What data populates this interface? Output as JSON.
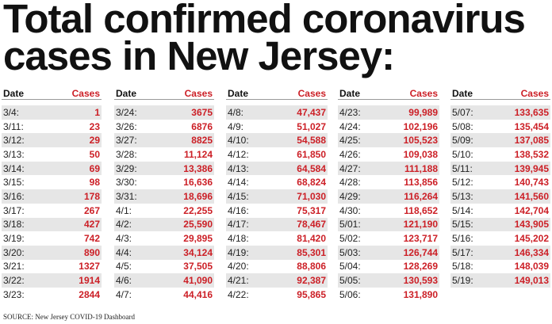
{
  "title": {
    "line1": "Total confirmed coronavirus",
    "line2": "cases in New Jersey:"
  },
  "headers": {
    "date": "Date",
    "cases": "Cases"
  },
  "columns": [
    [
      [
        "3/4:",
        "1"
      ],
      [
        "3/11:",
        "23"
      ],
      [
        "3/12:",
        "29"
      ],
      [
        "3/13:",
        "50"
      ],
      [
        "3/14:",
        "69"
      ],
      [
        "3/15:",
        "98"
      ],
      [
        "3/16:",
        "178"
      ],
      [
        "3/17:",
        "267"
      ],
      [
        "3/18:",
        "427"
      ],
      [
        "3/19:",
        "742"
      ],
      [
        "3/20:",
        "890"
      ],
      [
        "3/21:",
        "1327"
      ],
      [
        "3/22:",
        "1914"
      ],
      [
        "3/23:",
        "2844"
      ]
    ],
    [
      [
        "3/24:",
        "3675"
      ],
      [
        "3/26:",
        "6876"
      ],
      [
        "3/27:",
        "8825"
      ],
      [
        "3/28:",
        "11,124"
      ],
      [
        "3/29:",
        "13,386"
      ],
      [
        "3/30:",
        "16,636"
      ],
      [
        "3/31:",
        "18,696"
      ],
      [
        "4/1:",
        "22,255"
      ],
      [
        "4/2:",
        "25,590"
      ],
      [
        "4/3:",
        "29,895"
      ],
      [
        "4/4:",
        "34,124"
      ],
      [
        "4/5:",
        "37,505"
      ],
      [
        "4/6:",
        "41,090"
      ],
      [
        "4/7:",
        "44,416"
      ]
    ],
    [
      [
        "4/8:",
        "47,437"
      ],
      [
        "4/9:",
        "51,027"
      ],
      [
        "4/10:",
        "54,588"
      ],
      [
        "4/12:",
        "61,850"
      ],
      [
        "4/13:",
        "64,584"
      ],
      [
        "4/14:",
        "68,824"
      ],
      [
        "4/15:",
        "71,030"
      ],
      [
        "4/16:",
        "75,317"
      ],
      [
        "4/17:",
        "78,467"
      ],
      [
        "4/18:",
        "81,420"
      ],
      [
        "4/19:",
        "85,301"
      ],
      [
        "4/20:",
        "88,806"
      ],
      [
        "4/21:",
        "92,387"
      ],
      [
        "4/22:",
        "95,865"
      ]
    ],
    [
      [
        "4/23:",
        "99,989"
      ],
      [
        "4/24:",
        "102,196"
      ],
      [
        "4/25:",
        "105,523"
      ],
      [
        "4/26:",
        "109,038"
      ],
      [
        "4/27:",
        "111,188"
      ],
      [
        "4/28:",
        "113,856"
      ],
      [
        "4/29:",
        "116,264"
      ],
      [
        "4/30:",
        "118,652"
      ],
      [
        "5/01:",
        "121,190"
      ],
      [
        "5/02:",
        "123,717"
      ],
      [
        "5/03:",
        "126,744"
      ],
      [
        "5/04:",
        "128,269"
      ],
      [
        "5/05:",
        "130,593"
      ],
      [
        "5/06:",
        "131,890"
      ]
    ],
    [
      [
        "5/07:",
        "133,635"
      ],
      [
        "5/08:",
        "135,454"
      ],
      [
        "5/09:",
        "137,085"
      ],
      [
        "5/10:",
        "138,532"
      ],
      [
        "5/11:",
        "139,945"
      ],
      [
        "5/12:",
        "140,743"
      ],
      [
        "5/13:",
        "141,560"
      ],
      [
        "5/14:",
        "142,704"
      ],
      [
        "5/15:",
        "143,905"
      ],
      [
        "5/16:",
        "145,202"
      ],
      [
        "5/17:",
        "146,334"
      ],
      [
        "5/18:",
        "148,039"
      ],
      [
        "5/19:",
        "149,013"
      ]
    ]
  ],
  "source": "SOURCE: New Jersey COVID-19 Dashboard"
}
